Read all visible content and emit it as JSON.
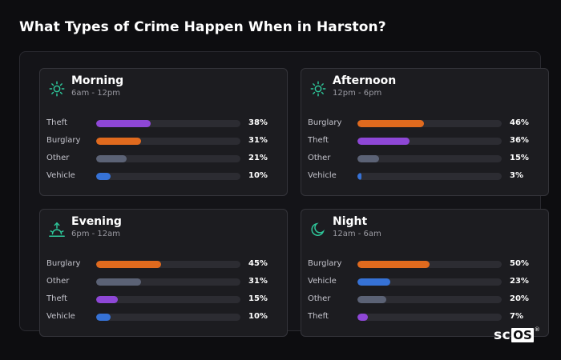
{
  "title": "What Types of Crime Happen When in Harston?",
  "colors": {
    "Theft": "#8e47d6",
    "Burglary": "#e06a1e",
    "Other": "#5b6275",
    "Vehicle": "#3672d6",
    "icon": "#2ec79a"
  },
  "logo": {
    "part1": "sc",
    "part2": "OS",
    "mark": "®"
  },
  "chart_data": [
    {
      "type": "bar",
      "title": "Morning",
      "subtitle": "6am - 12pm",
      "icon": "sun-icon",
      "categories": [
        "Theft",
        "Burglary",
        "Other",
        "Vehicle"
      ],
      "values": [
        38,
        31,
        21,
        10
      ],
      "labels": [
        "38%",
        "31%",
        "21%",
        "10%"
      ],
      "xlim": [
        0,
        100
      ]
    },
    {
      "type": "bar",
      "title": "Afternoon",
      "subtitle": "12pm - 6pm",
      "icon": "sun-icon",
      "categories": [
        "Burglary",
        "Theft",
        "Other",
        "Vehicle"
      ],
      "values": [
        46,
        36,
        15,
        3
      ],
      "labels": [
        "46%",
        "36%",
        "15%",
        "3%"
      ],
      "xlim": [
        0,
        100
      ]
    },
    {
      "type": "bar",
      "title": "Evening",
      "subtitle": "6pm - 12am",
      "icon": "sunset-icon",
      "categories": [
        "Burglary",
        "Other",
        "Theft",
        "Vehicle"
      ],
      "values": [
        45,
        31,
        15,
        10
      ],
      "labels": [
        "45%",
        "31%",
        "15%",
        "10%"
      ],
      "xlim": [
        0,
        100
      ]
    },
    {
      "type": "bar",
      "title": "Night",
      "subtitle": "12am - 6am",
      "icon": "moon-icon",
      "categories": [
        "Burglary",
        "Vehicle",
        "Other",
        "Theft"
      ],
      "values": [
        50,
        23,
        20,
        7
      ],
      "labels": [
        "50%",
        "23%",
        "20%",
        "7%"
      ],
      "xlim": [
        0,
        100
      ]
    }
  ]
}
